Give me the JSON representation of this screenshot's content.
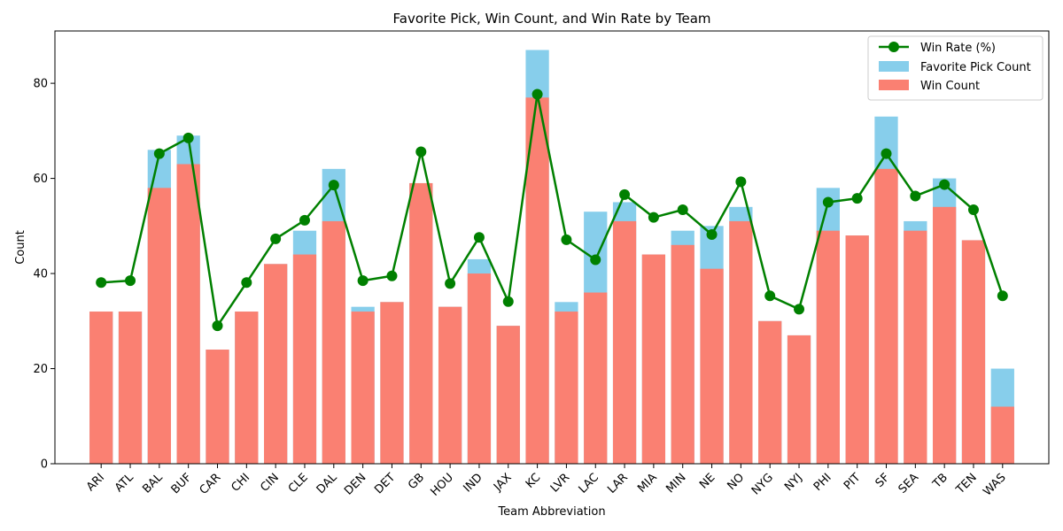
{
  "chart_data": {
    "type": "bar",
    "title": "Favorite Pick, Win Count, and Win Rate by Team",
    "xlabel": "Team Abbreviation",
    "ylabel": "Count",
    "ylim": [
      0,
      91
    ],
    "yticks": [
      0,
      20,
      40,
      60,
      80
    ],
    "legend_position": "top-right",
    "categories": [
      "ARI",
      "ATL",
      "BAL",
      "BUF",
      "CAR",
      "CHI",
      "CIN",
      "CLE",
      "DAL",
      "DEN",
      "DET",
      "GB",
      "HOU",
      "IND",
      "JAX",
      "KC",
      "LVR",
      "LAC",
      "LAR",
      "MIA",
      "MIN",
      "NE",
      "NO",
      "NYG",
      "NYJ",
      "PHI",
      "PIT",
      "SF",
      "SEA",
      "TB",
      "TEN",
      "WAS"
    ],
    "series": [
      {
        "name": "Favorite Pick Count",
        "kind": "bar",
        "color": "#87ceeb",
        "values": [
          32,
          32,
          66,
          69,
          24,
          32,
          42,
          49,
          62,
          33,
          34,
          59,
          33,
          43,
          29,
          87,
          34,
          53,
          55,
          44,
          49,
          50,
          54,
          30,
          27,
          58,
          48,
          73,
          51,
          60,
          47,
          20
        ]
      },
      {
        "name": "Win Count",
        "kind": "bar",
        "color": "#fa8072",
        "values": [
          32,
          32,
          58,
          63,
          24,
          32,
          42,
          44,
          51,
          32,
          34,
          59,
          33,
          40,
          29,
          77,
          32,
          36,
          51,
          44,
          46,
          41,
          51,
          30,
          27,
          49,
          48,
          62,
          49,
          54,
          47,
          12
        ]
      },
      {
        "name": "Win Rate (%)",
        "kind": "line",
        "color": "#008000",
        "values": [
          38.1,
          38.5,
          65.2,
          68.5,
          29.0,
          38.1,
          47.3,
          51.2,
          58.6,
          38.5,
          39.5,
          65.6,
          37.9,
          47.6,
          34.1,
          77.7,
          47.1,
          42.9,
          56.6,
          51.8,
          53.4,
          48.2,
          59.3,
          35.3,
          32.5,
          55.0,
          55.8,
          65.2,
          56.3,
          58.7,
          53.4,
          35.3
        ]
      }
    ]
  }
}
